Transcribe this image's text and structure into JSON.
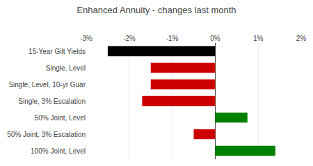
{
  "chart_data": {
    "type": "bar",
    "title": "Enhanced Annuity - changes last month",
    "orientation": "horizontal",
    "categories": [
      "15-Year Gilt Yields",
      "Single, Level",
      "Single, Level, 10-yr Guar",
      "Single, 3% Escalation",
      "50% Joint, Level",
      "50% Joint, 3% Escalation",
      "100% Joint, Level"
    ],
    "values": [
      -2.5,
      -1.5,
      -1.5,
      -1.7,
      0.75,
      -0.5,
      1.4
    ],
    "colors": [
      "#000000",
      "#cc0000",
      "#cc0000",
      "#cc0000",
      "#008000",
      "#cc0000",
      "#008000"
    ],
    "xlim": [
      -3,
      2
    ],
    "xticks": [
      {
        "value": -3,
        "label": "-3%"
      },
      {
        "value": -2,
        "label": "-2%"
      },
      {
        "value": -1,
        "label": "-1%"
      },
      {
        "value": 0,
        "label": "0%"
      },
      {
        "value": 1,
        "label": "1%"
      },
      {
        "value": 2,
        "label": "2%"
      }
    ],
    "grid": true
  }
}
